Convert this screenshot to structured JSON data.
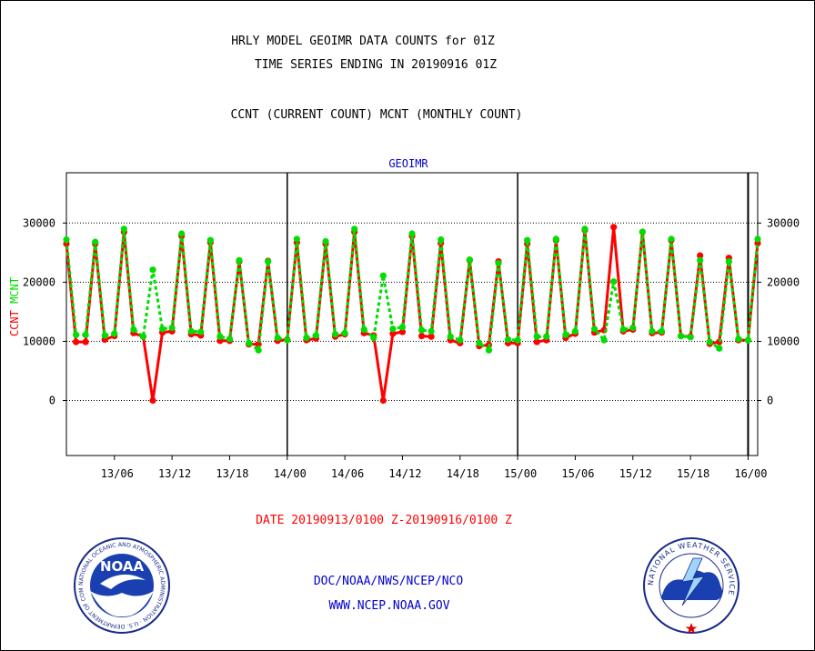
{
  "header": {
    "title_line1": "HRLY MODEL GEOIMR DATA COUNTS for 01Z",
    "title_line2": "TIME SERIES ENDING IN 20190916 01Z",
    "subtitle": "CCNT (CURRENT COUNT) MCNT (MONTHLY COUNT)"
  },
  "footer": {
    "date_range": "DATE 20190913/0100 Z-20190916/0100 Z",
    "agency": "DOC/NOAA/NWS/NCEP/NCO",
    "website": "WWW.NCEP.NOAA.GOV"
  },
  "logos": {
    "noaa_text": "NOAA",
    "noaa_ring": "NATIONAL OCEANIC AND ATMOSPHERIC ADMINISTRATION · U.S. DEPARTMENT OF COMMERCE",
    "nws_ring": "NATIONAL WEATHER SERVICE"
  },
  "colors": {
    "ccnt": "#ff0000",
    "mcnt": "#00dd00",
    "title_blue": "#0000cc",
    "footer_red": "#ff0000"
  },
  "chart_data": {
    "type": "line",
    "title": "GEOIMR",
    "ylabel_parts": [
      {
        "text": "CCNT",
        "series": "CCNT"
      },
      {
        "text": "MCNT",
        "series": "MCNT"
      }
    ],
    "x_unit": "hours since 20190913/0100 Z",
    "xlim": [
      0,
      72
    ],
    "ylim": [
      -9300,
      38500
    ],
    "yticks": [
      0,
      10000,
      20000,
      30000
    ],
    "ytick_labels": [
      "0",
      "10000",
      "20000",
      "30000"
    ],
    "xticks": [
      5,
      11,
      17,
      23,
      29,
      35,
      41,
      47,
      53,
      59,
      65,
      71
    ],
    "xtick_labels": [
      "13/06",
      "13/12",
      "13/18",
      "14/00",
      "14/06",
      "14/12",
      "14/18",
      "15/00",
      "15/06",
      "15/12",
      "15/18",
      "16/00"
    ],
    "day_lines": [
      23,
      47,
      71
    ],
    "grid": true,
    "series": [
      {
        "name": "CCNT",
        "x": [
          0,
          1,
          2,
          3,
          4,
          5,
          6,
          7,
          8,
          9,
          10,
          11,
          12,
          13,
          14,
          15,
          16,
          17,
          18,
          19,
          20,
          21,
          22,
          23,
          24,
          25,
          26,
          27,
          28,
          29,
          30,
          31,
          32,
          33,
          34,
          35,
          36,
          37,
          38,
          39,
          40,
          41,
          42,
          43,
          44,
          45,
          46,
          47,
          48,
          49,
          50,
          51,
          52,
          53,
          54,
          55,
          56,
          57,
          58,
          59,
          60,
          61,
          62,
          63,
          64,
          65,
          66,
          67,
          68,
          69,
          70,
          71,
          72
        ],
        "values": [
          26500,
          9900,
          9900,
          26500,
          10300,
          10900,
          28500,
          11400,
          10800,
          0,
          11500,
          11700,
          27800,
          11200,
          11000,
          26700,
          10100,
          10100,
          23500,
          9500,
          9500,
          23600,
          10100,
          10300,
          26700,
          10200,
          10500,
          26500,
          10800,
          11200,
          28500,
          11400,
          11000,
          0,
          11300,
          11600,
          27800,
          10900,
          10800,
          26600,
          10200,
          9700,
          23700,
          9200,
          9400,
          23500,
          9700,
          9700,
          26500,
          9900,
          10200,
          27100,
          10600,
          11300,
          28800,
          11500,
          11900,
          29300,
          11700,
          12000,
          28500,
          11400,
          11500,
          27100,
          10900,
          10800,
          24500,
          9600,
          9900,
          24100,
          10200,
          10200,
          26600
        ]
      },
      {
        "name": "MCNT",
        "x": [
          0,
          1,
          2,
          3,
          4,
          5,
          6,
          7,
          8,
          9,
          10,
          11,
          12,
          13,
          14,
          15,
          16,
          17,
          18,
          19,
          20,
          21,
          22,
          23,
          24,
          25,
          26,
          27,
          28,
          29,
          30,
          31,
          32,
          33,
          34,
          35,
          36,
          37,
          38,
          39,
          40,
          41,
          42,
          43,
          44,
          45,
          46,
          47,
          48,
          49,
          50,
          51,
          52,
          53,
          54,
          55,
          56,
          57,
          58,
          59,
          60,
          61,
          62,
          63,
          64,
          65,
          66,
          67,
          68,
          69,
          70,
          71,
          72
        ],
        "values": [
          27200,
          11100,
          11100,
          26800,
          11000,
          11300,
          29000,
          12000,
          10800,
          22100,
          12100,
          12300,
          28200,
          11700,
          11600,
          27100,
          10800,
          10400,
          23700,
          9700,
          8500,
          23500,
          10600,
          10200,
          27300,
          10600,
          11000,
          26900,
          11200,
          11400,
          29000,
          12000,
          10600,
          21100,
          12100,
          12400,
          28200,
          11900,
          11700,
          27200,
          10800,
          10200,
          23800,
          9700,
          8500,
          23200,
          10300,
          10200,
          27100,
          10800,
          10800,
          27300,
          11100,
          11700,
          29000,
          12100,
          10200,
          20100,
          12000,
          12300,
          28500,
          11700,
          11700,
          27300,
          10900,
          10700,
          23700,
          9900,
          8800,
          23500,
          10400,
          10200,
          27300
        ]
      }
    ]
  }
}
